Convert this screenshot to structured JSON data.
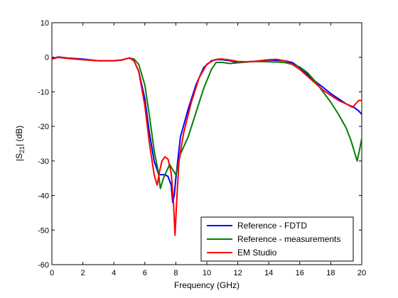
{
  "chart_data": {
    "type": "line",
    "xlabel": "Frequency (GHz)",
    "ylabel_main": "|S",
    "ylabel_sub": "21",
    "ylabel_tail": "| (dB)",
    "xlim": [
      0,
      20
    ],
    "ylim": [
      -60,
      10
    ],
    "xticks": [
      0,
      2,
      4,
      6,
      8,
      10,
      12,
      14,
      16,
      18,
      20
    ],
    "yticks": [
      10,
      0,
      -10,
      -20,
      -30,
      -40,
      -50,
      -60
    ],
    "grid": false,
    "legend_position": "bottom-right",
    "series": [
      {
        "name": "Reference - FDTD",
        "color": "#0000ff",
        "x": [
          0,
          0.2,
          0.4,
          1,
          2,
          3,
          4,
          4.5,
          5,
          5.3,
          5.6,
          6,
          6.3,
          6.6,
          6.9,
          7.1,
          7.3,
          7.5,
          7.7,
          7.8,
          7.9,
          8.0,
          8.3,
          8.8,
          9.3,
          9.8,
          10.3,
          10.6,
          11,
          11.5,
          12,
          12.5,
          13,
          14,
          15,
          15.5,
          16,
          16.5,
          17,
          17.5,
          18,
          18.5,
          19,
          19.5,
          19.8,
          20
        ],
        "y": [
          -0.3,
          -0.2,
          0.1,
          -0.2,
          -0.5,
          -1,
          -1,
          -0.8,
          -0.2,
          -1,
          -4,
          -12,
          -22,
          -30,
          -34,
          -34,
          -34,
          -34.5,
          -37,
          -42,
          -40,
          -35,
          -23,
          -15,
          -8,
          -3,
          -1,
          -0.7,
          -0.7,
          -1,
          -1.5,
          -1.4,
          -1.2,
          -0.8,
          -1,
          -1.5,
          -3,
          -5,
          -7,
          -8.7,
          -10.5,
          -12,
          -13.5,
          -14.5,
          -15.5,
          -16.5
        ]
      },
      {
        "name": "Reference - measurements",
        "color": "#008000",
        "x": [
          0,
          0.2,
          0.4,
          1,
          2,
          3,
          4,
          4.5,
          5,
          5.3,
          5.6,
          6,
          6.3,
          6.6,
          6.9,
          7.0,
          7.2,
          7.4,
          7.6,
          7.8,
          8.0,
          8.3,
          8.8,
          9.3,
          9.8,
          10.3,
          10.6,
          11,
          11.5,
          12,
          12.5,
          13,
          14,
          15,
          15.5,
          16,
          16.5,
          17,
          17.5,
          18,
          18.5,
          19,
          19.3,
          19.5,
          19.7,
          19.85,
          20
        ],
        "y": [
          -0.5,
          -0.3,
          0,
          -0.3,
          -0.7,
          -1,
          -1,
          -0.8,
          -0.2,
          -0.5,
          -2,
          -8,
          -17,
          -27,
          -34,
          -38,
          -35,
          -33,
          -31,
          -32.5,
          -34,
          -28,
          -23,
          -16,
          -9,
          -3.5,
          -1.5,
          -1.5,
          -1.8,
          -1.6,
          -1.4,
          -1.2,
          -1.3,
          -1.5,
          -2,
          -2.8,
          -4.5,
          -7,
          -10,
          -13,
          -16.5,
          -20.5,
          -24,
          -27,
          -30,
          -27,
          -23.5
        ]
      },
      {
        "name": "EM Studio",
        "color": "#ff0000",
        "x": [
          0,
          0.2,
          0.4,
          1,
          2,
          3,
          4,
          4.5,
          5,
          5.3,
          5.6,
          6,
          6.3,
          6.6,
          6.8,
          6.95,
          7.1,
          7.3,
          7.5,
          7.7,
          7.85,
          7.95,
          8.05,
          8.2,
          8.5,
          9,
          9.5,
          10,
          10.5,
          10.8,
          11,
          11.5,
          12,
          12.5,
          13,
          14,
          14.5,
          15,
          15.5,
          16,
          16.5,
          17,
          17.5,
          18,
          18.5,
          19,
          19.4,
          19.6,
          19.8,
          20
        ],
        "y": [
          -0.5,
          -0.3,
          0,
          -0.3,
          -0.7,
          -1,
          -1,
          -0.8,
          -0.2,
          -1,
          -4,
          -14,
          -25,
          -34,
          -37,
          -33,
          -30,
          -28.8,
          -29.5,
          -33.5,
          -42,
          -51.5,
          -42,
          -30,
          -22,
          -13,
          -6,
          -2,
          -0.7,
          -0.5,
          -0.5,
          -0.8,
          -1.2,
          -1.3,
          -1.2,
          -0.7,
          -0.6,
          -1,
          -2,
          -3.5,
          -5.5,
          -7.5,
          -9.5,
          -11,
          -12.5,
          -13.5,
          -14.5,
          -13.5,
          -12.5,
          -12.5
        ]
      }
    ]
  }
}
